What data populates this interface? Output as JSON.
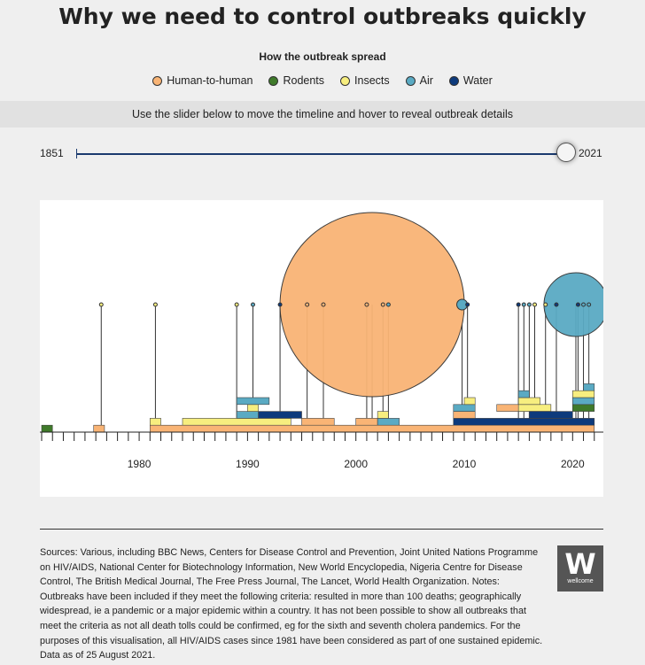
{
  "title": "Why we need to control outbreaks quickly",
  "legend": {
    "title": "How the outbreak spread",
    "items": [
      {
        "label": "Human-to-human",
        "color": "#f9b475"
      },
      {
        "label": "Rodents",
        "color": "#3f7a2a"
      },
      {
        "label": "Insects",
        "color": "#f7ee7f"
      },
      {
        "label": "Air",
        "color": "#5aaac3"
      },
      {
        "label": "Water",
        "color": "#0d3a7c"
      }
    ]
  },
  "instruction": "Use the slider below to move the timeline and hover to reveal outbreak details",
  "slider": {
    "start_label": "1851",
    "end_label": "2021",
    "value": 2021,
    "min": 1851,
    "max": 2021
  },
  "chart_data": {
    "type": "timeline",
    "x_axis": {
      "range": [
        1971,
        2023
      ],
      "tick_labels": [
        "1980",
        "1990",
        "2000",
        "2010",
        "2020"
      ]
    },
    "outbreak_markers": [
      {
        "year": 1976.5,
        "mode": "Insects",
        "radius_class": "small"
      },
      {
        "year": 1981.5,
        "mode": "Insects",
        "radius_class": "small"
      },
      {
        "year": 1989,
        "mode": "Insects",
        "radius_class": "small"
      },
      {
        "year": 1990.5,
        "mode": "Air",
        "radius_class": "small"
      },
      {
        "year": 1993,
        "mode": "Water",
        "radius_class": "small"
      },
      {
        "year": 1995.5,
        "mode": "Human-to-human",
        "radius_class": "small"
      },
      {
        "year": 1997,
        "mode": "Human-to-human",
        "radius_class": "small"
      },
      {
        "year": 2001.5,
        "mode": "Human-to-human",
        "radius_class": "large"
      },
      {
        "year": 2001,
        "mode": "Human-to-human",
        "radius_class": "small"
      },
      {
        "year": 2002.5,
        "mode": "Human-to-human",
        "radius_class": "small"
      },
      {
        "year": 2003,
        "mode": "Air",
        "radius_class": "small"
      },
      {
        "year": 2009.8,
        "mode": "Air",
        "radius_class": "medium"
      },
      {
        "year": 2010.3,
        "mode": "Water",
        "radius_class": "small"
      },
      {
        "year": 2015,
        "mode": "Water",
        "radius_class": "small"
      },
      {
        "year": 2015.5,
        "mode": "Air",
        "radius_class": "small"
      },
      {
        "year": 2016,
        "mode": "Air",
        "radius_class": "small"
      },
      {
        "year": 2016.5,
        "mode": "Insects",
        "radius_class": "small"
      },
      {
        "year": 2017.5,
        "mode": "Insects",
        "radius_class": "small"
      },
      {
        "year": 2018.5,
        "mode": "Water",
        "radius_class": "small"
      },
      {
        "year": 2020.3,
        "mode": "Air",
        "radius_class": "large"
      },
      {
        "year": 2020.5,
        "mode": "Water",
        "radius_class": "small"
      },
      {
        "year": 2021,
        "mode": "Air",
        "radius_class": "small"
      },
      {
        "year": 2021.5,
        "mode": "Air",
        "radius_class": "small"
      }
    ],
    "durations": [
      {
        "start": 1971,
        "end": 1972,
        "row": 0,
        "mode": "Rodents"
      },
      {
        "start": 1975.8,
        "end": 1976.8,
        "row": 0,
        "mode": "Human-to-human"
      },
      {
        "start": 1981,
        "end": 2022,
        "row": 0,
        "mode": "Human-to-human"
      },
      {
        "start": 1981,
        "end": 1982,
        "row": 1,
        "mode": "Insects"
      },
      {
        "start": 1984,
        "end": 1994,
        "row": 1,
        "mode": "Insects"
      },
      {
        "start": 1989,
        "end": 1991,
        "row": 2,
        "mode": "Air"
      },
      {
        "start": 1991,
        "end": 1995,
        "row": 2,
        "mode": "Water"
      },
      {
        "start": 1990,
        "end": 1991,
        "row": 3,
        "mode": "Insects"
      },
      {
        "start": 1989,
        "end": 1992,
        "row": 4,
        "mode": "Air"
      },
      {
        "start": 1995,
        "end": 1998,
        "row": 1,
        "mode": "Human-to-human"
      },
      {
        "start": 2000,
        "end": 2002,
        "row": 1,
        "mode": "Human-to-human"
      },
      {
        "start": 2002,
        "end": 2004,
        "row": 1,
        "mode": "Air"
      },
      {
        "start": 2002,
        "end": 2003,
        "row": 2,
        "mode": "Insects"
      },
      {
        "start": 2009,
        "end": 2022,
        "row": 1,
        "mode": "Water"
      },
      {
        "start": 2009,
        "end": 2011,
        "row": 2,
        "mode": "Human-to-human"
      },
      {
        "start": 2009,
        "end": 2011,
        "row": 3,
        "mode": "Air"
      },
      {
        "start": 2010,
        "end": 2011,
        "row": 4,
        "mode": "Insects"
      },
      {
        "start": 2013,
        "end": 2017,
        "row": 3,
        "mode": "Human-to-human"
      },
      {
        "start": 2015,
        "end": 2018,
        "row": 3,
        "mode": "Insects"
      },
      {
        "start": 2015,
        "end": 2017,
        "row": 4,
        "mode": "Insects"
      },
      {
        "start": 2015,
        "end": 2016,
        "row": 5,
        "mode": "Air"
      },
      {
        "start": 2016,
        "end": 2020,
        "row": 2,
        "mode": "Water"
      },
      {
        "start": 2020,
        "end": 2022,
        "row": 3,
        "mode": "Rodents"
      },
      {
        "start": 2020,
        "end": 2022,
        "row": 4,
        "mode": "Air"
      },
      {
        "start": 2020,
        "end": 2022,
        "row": 5,
        "mode": "Insects"
      },
      {
        "start": 2021,
        "end": 2022,
        "row": 6,
        "mode": "Air"
      }
    ]
  },
  "sources_text": "Sources: Various, including BBC News, Centers for Disease Control and Prevention, Joint United Nations Programme on HIV/AIDS, National Center for Biotechnology Information, New World Encyclopedia, Nigeria Centre for Disease Control, The British Medical Journal, The Free Press Journal, The Lancet, World Health Organization. Notes: Outbreaks have been included if they meet the following criteria: resulted in more than 100 deaths; geographically widespread, ie a pandemic or a major epidemic within a country. It has not been possible to show all outbreaks that meet the criteria as not all death tolls could be confirmed, eg for the sixth and seventh cholera pandemics. For the purposes of this visualisation, all HIV/AIDS cases since 1981 have been considered as part of one sustained epidemic. Data as of 25 August 2021.",
  "logo": {
    "letter": "W",
    "text": "wellcome"
  }
}
